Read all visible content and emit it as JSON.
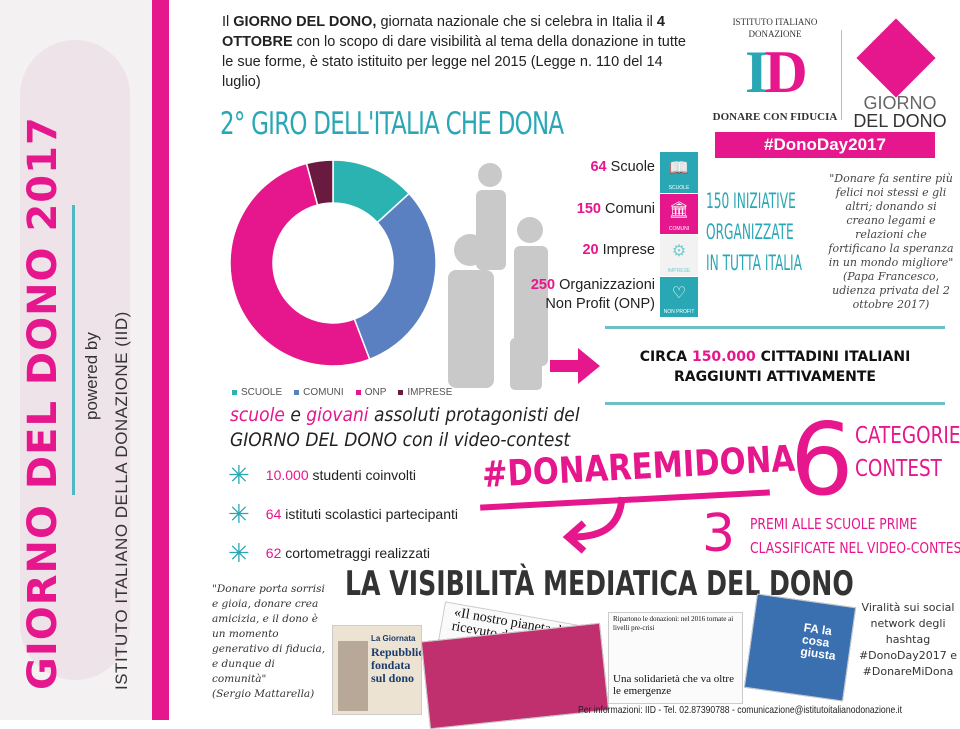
{
  "sidebar": {
    "title": "GIORNO DEL DONO 2017",
    "powered_by": "powered by",
    "org": "ISTITUTO ITALIANO DELLA DONAZIONE (IID)"
  },
  "intro": {
    "p1": "Il ",
    "b1": "GIORNO DEL DONO,",
    "p2": " giornata nazionale che si celebra in Italia il ",
    "b2": "4 OTTOBRE",
    "p3": " con lo scopo di dare visibilità al tema della donazione in tutte le sue forme, è stato istituito per legge nel 2015 (Legge n. 110 del 14 luglio)"
  },
  "giro_title": "2° GIRO DELL'ITALIA CHE DONA",
  "logo": {
    "arc": "ISTITUTO ITALIANO DONAZIONE",
    "id": "ID",
    "tagline": "DONARE CON FIDUCIA",
    "giorno": "GIORNO",
    "del_dono": "DEL DONO",
    "hashtag": "#DonoDay2017"
  },
  "colors": {
    "pink": "#e6168c",
    "teal": "#2aa7b5",
    "blue": "#5b80c2",
    "dark": "#6a1a3e"
  },
  "chart_data": {
    "type": "pie",
    "donut": true,
    "categories": [
      "SCUOLE",
      "COMUNI",
      "ONP",
      "IMPRESE"
    ],
    "values": [
      64,
      150,
      250,
      20
    ],
    "colors": [
      "#2ab3b1",
      "#5b80c2",
      "#e6168c",
      "#6a1a3e"
    ],
    "legend": "bottom"
  },
  "stats": [
    {
      "num": "64",
      "label": " Scuole",
      "icon": "book-icon",
      "icon_text": "SCUOLE",
      "color": "#2aa7b5"
    },
    {
      "num": "150",
      "label": " Comuni",
      "icon": "building-icon",
      "icon_text": "COMUNI",
      "color": "#e6168c"
    },
    {
      "num": "20",
      "label": " Imprese",
      "icon": "gears-icon",
      "icon_text": "IMPRESE",
      "color": "#f2f2f2"
    },
    {
      "num": "250",
      "label": " Organizzazioni",
      "label2": "Non Profit (ONP)",
      "icon": "heart-icon",
      "icon_text": "NON PROFIT",
      "color": "#2aa7b5"
    }
  ],
  "iniziative": [
    "150 INIZIATIVE",
    "ORGANIZZATE",
    "IN TUTTA ITALIA"
  ],
  "papa_quote": "\"Donare fa sentire più felici noi stessi e gli altri; donando si creano legami e relazioni che fortificano la speranza in un mondo migliore\"",
  "papa_source": "(Papa Francesco, udienza privata del 2 ottobre 2017)",
  "circa": {
    "pre": "CIRCA ",
    "num": "150.000",
    "post": " CITTADINI ITALIANI",
    "line2": "RAGGIUNTI ATTIVAMENTE"
  },
  "protagonisti": {
    "w1": "scuole",
    "w2": " e ",
    "w3": "giovani",
    "w4": " assoluti protagonisti del",
    "line2": "GIORNO DEL DONO con il video-contest"
  },
  "bullets": [
    {
      "num": "10.000",
      "text": " studenti coinvolti"
    },
    {
      "num": "64",
      "text": " istituti scolastici partecipanti"
    },
    {
      "num": "62",
      "text": " cortometraggi realizzati"
    }
  ],
  "hashtag": "#DONAREMIDONA",
  "six": {
    "num": "6",
    "l1": "CATEGORIE",
    "l2": "CONTEST"
  },
  "three": {
    "num": "3",
    "l1": "PREMI ALLE SCUOLE PRIME",
    "l2": "CLASSIFICATE NEL VIDEO-CONTEST"
  },
  "visibilita": "LA VISIBILITÀ MEDIATICA DEL DONO",
  "mattarella_quote": "\"Donare porta sorrisi e gioia, donare crea amicizia, e il dono è un momento generativo di fiducia, e dunque di comunità\"",
  "mattarella_source": "(Sergio Mattarella)",
  "clips": {
    "c1_head": "La Giornata",
    "c1_title": "Repubblica fondata sul dono",
    "c2_title": "«Il nostro pianeta dono ricevuto da co",
    "c4_head": "Ripartono le donazioni: nel 2016 tornate ai livelli pre-crisi",
    "c4_title": "Una solidarietà che va oltre le emergenze",
    "c5_title": "FA la cosa giusta"
  },
  "viral": "Viralità sui social network degli hashtag #DonoDay2017 e #DonareMiDona",
  "footer": "Per informazioni: IID - Tel. 02.87390788 - comunicazione@istitutoitalianodonazione.it"
}
